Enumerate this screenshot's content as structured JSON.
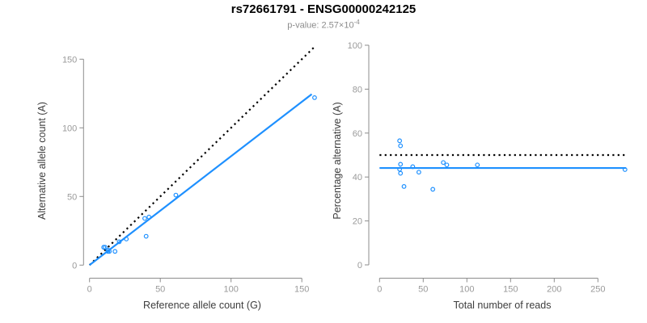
{
  "header": {
    "title": "rs72661791 - ENSG00000242125",
    "subtitle_prefix": "p-value: 2.57×10",
    "subtitle_exponent": "-4"
  },
  "colors": {
    "accent": "#1E90FF",
    "reference_line": "#000000",
    "axis": "#8c8c8c",
    "tick_label": "#9a9a9a",
    "axis_title": "#3d3d3d"
  },
  "chart_data": [
    {
      "type": "scatter",
      "xlabel": "Reference allele count (G)",
      "ylabel": "Alternative allele count (A)",
      "xticks": [
        0,
        50,
        100,
        150
      ],
      "yticks": [
        0,
        50,
        100,
        150
      ],
      "xlim": [
        0,
        160
      ],
      "ylim": [
        0,
        160
      ],
      "grid": false,
      "legend": "none",
      "points": [
        [
          10,
          13
        ],
        [
          11,
          13
        ],
        [
          13,
          11
        ],
        [
          13,
          10
        ],
        [
          14,
          10
        ],
        [
          18,
          10
        ],
        [
          21,
          17
        ],
        [
          26,
          19
        ],
        [
          39,
          34
        ],
        [
          40,
          21
        ],
        [
          42,
          35
        ],
        [
          61,
          51
        ],
        [
          159,
          122
        ]
      ],
      "lines": [
        {
          "name": "expected-identity-line",
          "style": "dotted",
          "color": "#000000",
          "from": [
            0,
            0
          ],
          "to": [
            160,
            160
          ]
        },
        {
          "name": "fit-line",
          "style": "solid",
          "color": "#1E90FF",
          "from": [
            0,
            0
          ],
          "to": [
            157,
            124.5
          ]
        }
      ]
    },
    {
      "type": "scatter",
      "xlabel": "Total number of reads",
      "ylabel": "Percentage alternative (A)",
      "xticks": [
        0,
        50,
        100,
        150,
        200,
        250
      ],
      "yticks": [
        0,
        20,
        40,
        60,
        80,
        100
      ],
      "xlim": [
        0,
        282
      ],
      "ylim": [
        0,
        100
      ],
      "grid": false,
      "legend": "none",
      "points": [
        [
          23,
          56.5
        ],
        [
          24,
          54.2
        ],
        [
          24,
          45.8
        ],
        [
          23,
          43.5
        ],
        [
          24,
          41.7
        ],
        [
          28,
          35.7
        ],
        [
          38,
          44.7
        ],
        [
          45,
          42.2
        ],
        [
          61,
          34.4
        ],
        [
          73,
          46.6
        ],
        [
          77,
          45.5
        ],
        [
          112,
          45.5
        ],
        [
          281,
          43.4
        ]
      ],
      "lines": [
        {
          "name": "expected-50pct-line",
          "style": "dotted",
          "color": "#000000",
          "from": [
            0,
            50
          ],
          "to": [
            282,
            50
          ]
        },
        {
          "name": "mean-pct-line",
          "style": "solid",
          "color": "#1E90FF",
          "from": [
            0,
            44.1
          ],
          "to": [
            282,
            44.1
          ]
        }
      ]
    }
  ]
}
